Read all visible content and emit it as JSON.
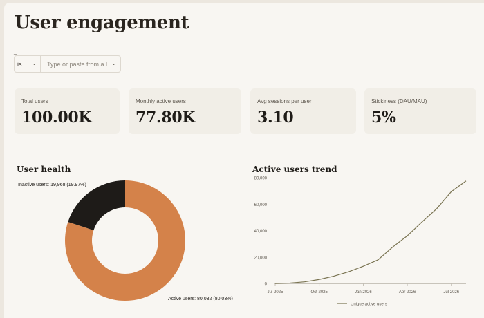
{
  "page": {
    "title": "User engagement"
  },
  "filter": {
    "label": "_",
    "operator": "is",
    "placeholder": "Type or paste from a l..."
  },
  "kpis": [
    {
      "label": "Total users",
      "value": "100.00K"
    },
    {
      "label": "Monthly active users",
      "value": "77.80K"
    },
    {
      "label": "Avg sessions per user",
      "value": "3.10"
    },
    {
      "label": "Stickiness (DAU/MAU)",
      "value": "5%"
    }
  ],
  "health": {
    "title": "User health",
    "inactive_label": "Inactive users: 19,968 (19.97%)",
    "active_label": "Active users: 80,032 (80.03%)"
  },
  "trend": {
    "title": "Active users trend",
    "legend": "Unique active users"
  },
  "colors": {
    "active": "#d4824a",
    "inactive": "#1e1b18",
    "line": "#7a7452"
  },
  "chart_data": [
    {
      "type": "pie",
      "title": "User health",
      "slices": [
        {
          "name": "Active users",
          "value": 80032,
          "percent": 80.03
        },
        {
          "name": "Inactive users",
          "value": 19968,
          "percent": 19.97
        }
      ]
    },
    {
      "type": "line",
      "title": "Active users trend",
      "ylim": [
        0,
        80000
      ],
      "yticks": [
        "0",
        "20,000",
        "40,000",
        "60,000",
        "80,000"
      ],
      "xticks": [
        "Jul 2025",
        "Oct 2025",
        "Jan 2026",
        "Apr 2026",
        "Jul 2026"
      ],
      "series": [
        {
          "name": "Unique active users",
          "points": [
            [
              "Jul 2025",
              0
            ],
            [
              "Aug 2025",
              300
            ],
            [
              "Sep 2025",
              1200
            ],
            [
              "Oct 2025",
              3000
            ],
            [
              "Nov 2025",
              5500
            ],
            [
              "Dec 2025",
              8800
            ],
            [
              "Jan 2026",
              13000
            ],
            [
              "Feb 2026",
              17800
            ],
            [
              "Mar 2026",
              27500
            ],
            [
              "Apr 2026",
              36000
            ],
            [
              "May 2026",
              46500
            ],
            [
              "Jun 2026",
              56500
            ],
            [
              "Jul 2026",
              69500
            ],
            [
              "Aug 2026",
              77500
            ]
          ]
        }
      ]
    }
  ]
}
